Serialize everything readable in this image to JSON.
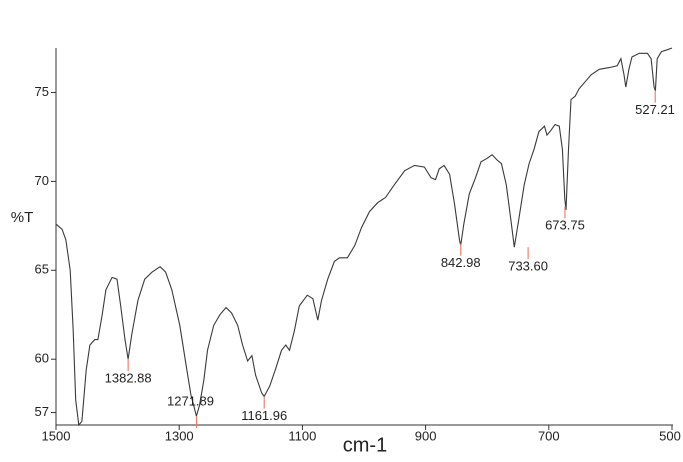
{
  "chart_data": {
    "type": "line",
    "x_label": "cm-1",
    "y_label": "%T",
    "xlim": [
      1500,
      500
    ],
    "ylim": [
      56.3,
      77.5
    ],
    "xticks": [
      1500,
      1300,
      1100,
      900,
      700,
      500
    ],
    "yticks": [
      57,
      60,
      65,
      70,
      75
    ],
    "color": "#3a3a3a",
    "x": [
      1500,
      1490,
      1484,
      1477,
      1472,
      1468,
      1463,
      1458,
      1451,
      1445,
      1437,
      1432,
      1425,
      1419,
      1409,
      1401,
      1395,
      1388,
      1383,
      1377,
      1367,
      1356,
      1344,
      1331,
      1322,
      1312,
      1299,
      1289,
      1281,
      1272,
      1267,
      1260,
      1254,
      1244,
      1234,
      1224,
      1215,
      1205,
      1197,
      1189,
      1182,
      1176,
      1166,
      1162,
      1153,
      1143,
      1134,
      1127,
      1121,
      1113,
      1105,
      1092,
      1083,
      1075,
      1069,
      1059,
      1048,
      1040,
      1027,
      1015,
      1004,
      991,
      978,
      965,
      951,
      934,
      918,
      902,
      891,
      884,
      878,
      870,
      861,
      853,
      845,
      843,
      838,
      829,
      819,
      810,
      800,
      792,
      784,
      777,
      769,
      761,
      756,
      749,
      740,
      732,
      724,
      716,
      707,
      703,
      696,
      690,
      683,
      678,
      674,
      672,
      668,
      664,
      657,
      651,
      641,
      631,
      618,
      602,
      589,
      583,
      578,
      575,
      570,
      565,
      553,
      540,
      534,
      529,
      527,
      524,
      517,
      508,
      500
    ],
    "values": [
      67.6,
      67.3,
      66.7,
      65,
      61.6,
      57.7,
      56.3,
      56.5,
      59.4,
      60.8,
      61.1,
      61.1,
      62.5,
      63.9,
      64.6,
      64.5,
      63,
      61.1,
      60,
      61.4,
      63.3,
      64.5,
      64.9,
      65.2,
      64.9,
      63.9,
      61.9,
      59.7,
      58,
      56.8,
      57.4,
      58.8,
      60.5,
      61.9,
      62.5,
      62.9,
      62.6,
      61.9,
      60.8,
      59.9,
      60.2,
      59.1,
      58.1,
      57.9,
      58.5,
      59.5,
      60.5,
      60.8,
      60.5,
      61.6,
      63,
      63.6,
      63.4,
      62.2,
      63.3,
      64.5,
      65.5,
      65.7,
      65.7,
      66.4,
      67.4,
      68.3,
      68.8,
      69.1,
      69.8,
      70.6,
      70.9,
      70.8,
      70.2,
      70.1,
      70.7,
      70.9,
      70.4,
      68.7,
      66.7,
      66.4,
      67.6,
      69.3,
      70.2,
      71.1,
      71.3,
      71.5,
      71.2,
      71,
      69.8,
      67.7,
      66.3,
      67.8,
      69.8,
      71,
      71.8,
      72.8,
      73.1,
      72.6,
      72.9,
      73.2,
      73.1,
      71.8,
      69,
      68.4,
      71.8,
      74.6,
      74.8,
      75.2,
      75.6,
      76,
      76.3,
      76.4,
      76.5,
      76.9,
      76,
      75.3,
      76.3,
      77,
      77.2,
      77.2,
      76.9,
      75.3,
      75.1,
      76.9,
      77.3,
      77.4,
      77.5
    ],
    "peaks": {
      "color": "#f08070",
      "x": [
        1382.88,
        1271.89,
        1161.96,
        842.98,
        733.6,
        673.75,
        527.21
      ],
      "y": [
        60,
        56.8,
        57.9,
        66.5,
        66.3,
        68.6,
        75.1
      ],
      "labels": [
        "1382.88",
        "1271.89",
        "1161.96",
        "842.98",
        "733.60",
        "673.75",
        "527.21"
      ]
    }
  }
}
